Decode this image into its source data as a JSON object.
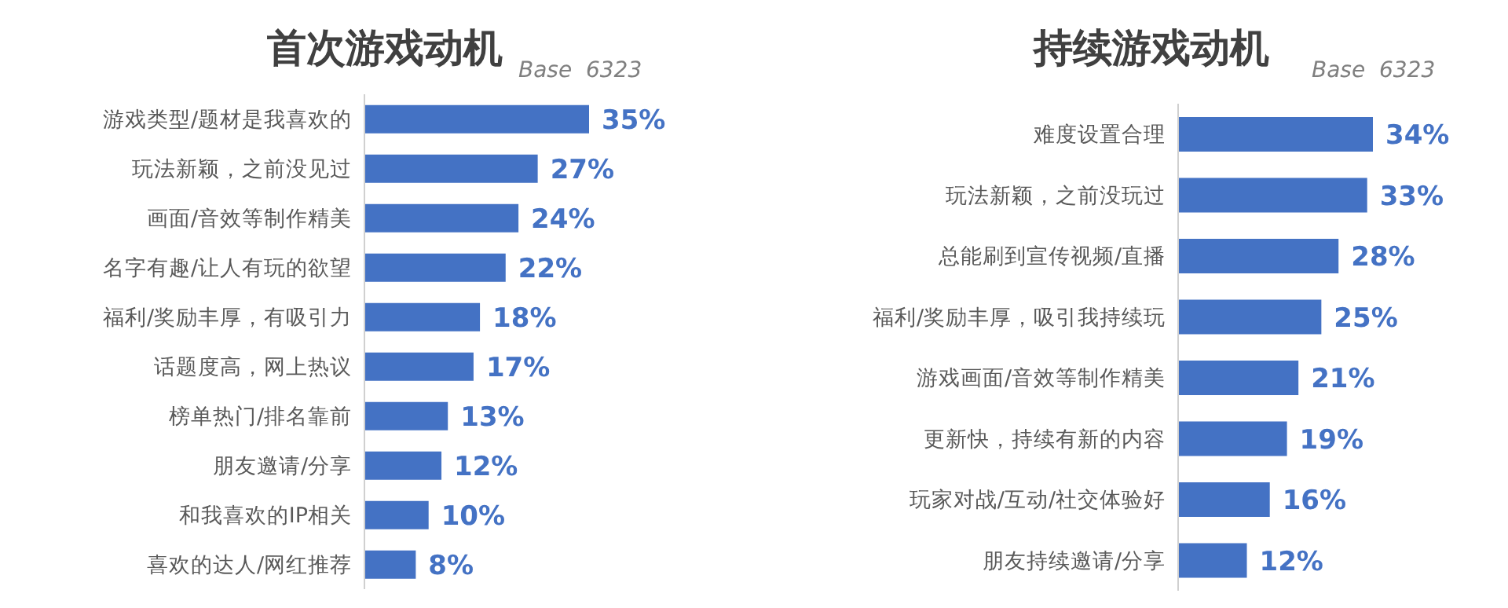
{
  "chart_data": [
    {
      "type": "bar",
      "orientation": "horizontal",
      "title": "首次游戏动机",
      "annotations": [
        "Base  6323"
      ],
      "categories": [
        "游戏类型/题材是我喜欢的",
        "玩法新颖，之前没见过",
        "画面/音效等制作精美",
        "名字有趣/让人有玩的欲望",
        "福利/奖励丰厚，有吸引力",
        "话题度高，网上热议",
        "榜单热门/排名靠前",
        "朋友邀请/分享",
        "和我喜欢的IP相关",
        "喜欢的达人/网红推荐"
      ],
      "values": [
        35,
        27,
        24,
        22,
        18,
        17,
        13,
        12,
        10,
        8
      ],
      "value_labels": [
        "35%",
        "27%",
        "24%",
        "22%",
        "18%",
        "17%",
        "13%",
        "12%",
        "10%",
        "8%"
      ],
      "color": "#4472c4",
      "tick_labels": "y",
      "grid": false,
      "legend": false
    },
    {
      "type": "bar",
      "orientation": "horizontal",
      "title": "持续游戏动机",
      "annotations": [
        "Base  6323"
      ],
      "categories": [
        "难度设置合理",
        "玩法新颖，之前没玩过",
        "总能刷到宣传视频/直播",
        "福利/奖励丰厚，吸引我持续玩",
        "游戏画面/音效等制作精美",
        "更新快，持续有新的内容",
        "玩家对战/互动/社交体验好",
        "朋友持续邀请/分享"
      ],
      "values": [
        34,
        33,
        28,
        25,
        21,
        19,
        16,
        12
      ],
      "value_labels": [
        "34%",
        "33%",
        "28%",
        "25%",
        "21%",
        "19%",
        "16%",
        "12%"
      ],
      "color": "#4472c4",
      "tick_labels": "y",
      "grid": false,
      "legend": false
    }
  ]
}
